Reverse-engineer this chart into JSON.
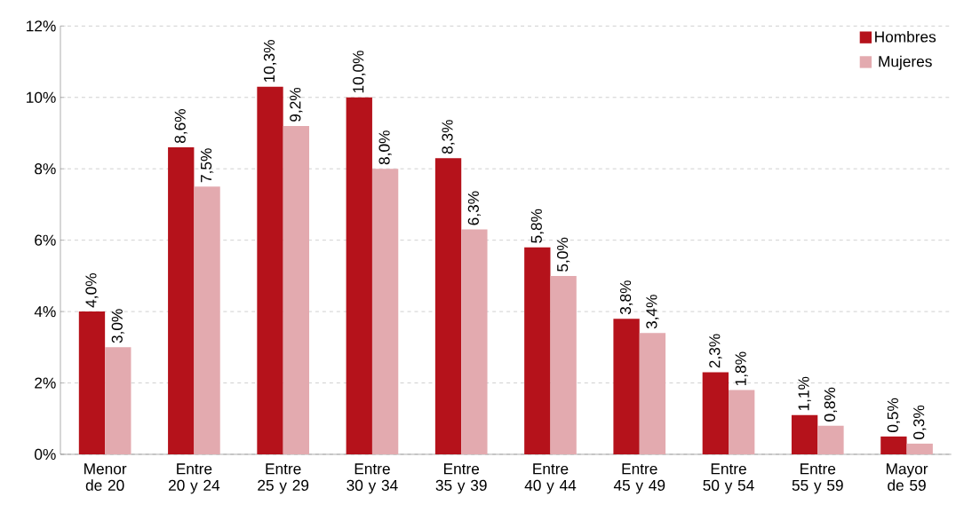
{
  "chart_data": {
    "type": "bar",
    "categories": [
      "Menor de 20",
      "Entre 20 y 24",
      "Entre 25 y 29",
      "Entre 30 y 34",
      "Entre  35 y 39",
      "Entre 40 y 44",
      "Entre 45 y 49",
      "Entre 50 y 54",
      "Entre 55 y 59",
      "Mayor de 59"
    ],
    "series": [
      {
        "name": "Hombres",
        "color": "#b5121b",
        "values": [
          4.0,
          8.6,
          10.3,
          10.0,
          8.3,
          5.8,
          3.8,
          2.3,
          1.1,
          0.5
        ],
        "value_labels": [
          "4,0%",
          "8,6%",
          "10,3%",
          "10,0%",
          "8,3%",
          "5,8%",
          "3,8%",
          "2,3%",
          "1,1%",
          "0,5%"
        ]
      },
      {
        "name": "Mujeres",
        "color": "#e3aaaf",
        "values": [
          3.0,
          7.5,
          9.2,
          8.0,
          6.3,
          5.0,
          3.4,
          1.8,
          0.8,
          0.3
        ],
        "value_labels": [
          "3,0%",
          "7,5%",
          "9,2%",
          "8,0%",
          "6,3%",
          "5,0%",
          "3,4%",
          "1,8%",
          "0,8%",
          "0,3%"
        ]
      }
    ],
    "ylim": [
      0,
      12
    ],
    "yticks": [
      {
        "value": 0,
        "label": "0%"
      },
      {
        "value": 2,
        "label": "2%"
      },
      {
        "value": 4,
        "label": "4%"
      },
      {
        "value": 6,
        "label": "6%"
      },
      {
        "value": 8,
        "label": "8%"
      },
      {
        "value": 10,
        "label": "10%"
      },
      {
        "value": 12,
        "label": "12%"
      }
    ],
    "grid": "y",
    "legend": "top right"
  }
}
